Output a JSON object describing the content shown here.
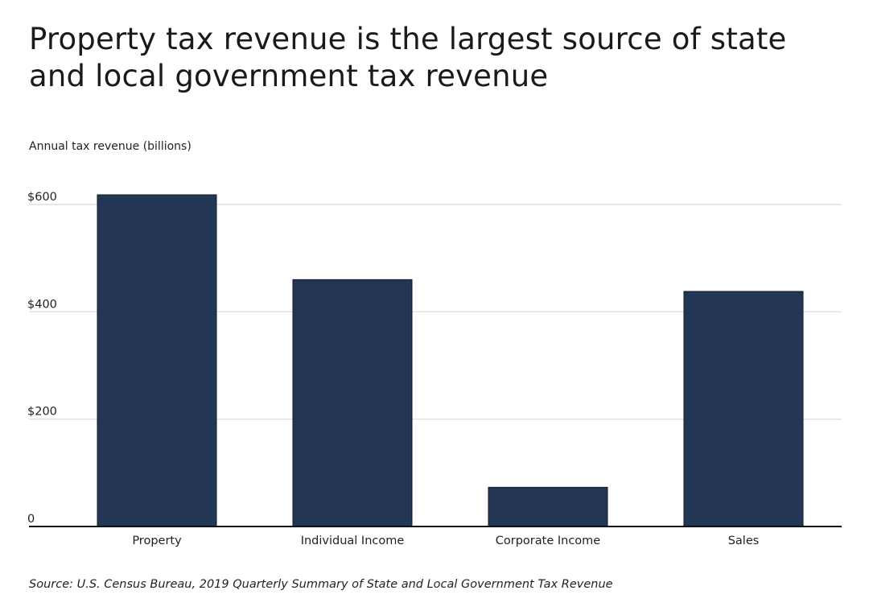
{
  "title": "Property tax revenue is the largest source of state and local government tax revenue",
  "source": "Source: U.S. Census Bureau, 2019 Quarterly Summary of State and Local Government Tax Revenue",
  "chart_data": {
    "type": "bar",
    "title": "Property tax revenue is the largest source of state and local government tax revenue",
    "ylabel": "Annual tax revenue (billions)",
    "xlabel": "",
    "categories": [
      "Property",
      "Individual Income",
      "Corporate Income",
      "Sales"
    ],
    "values": [
      618,
      460,
      73,
      438
    ],
    "ylim": [
      0,
      600
    ],
    "yticks": [
      0,
      200,
      400,
      600
    ],
    "ytick_labels": [
      "0",
      "$200",
      "$400",
      "$600"
    ],
    "grid": true,
    "bar_color": "#243655",
    "grid_color": "#d9d9d9"
  }
}
